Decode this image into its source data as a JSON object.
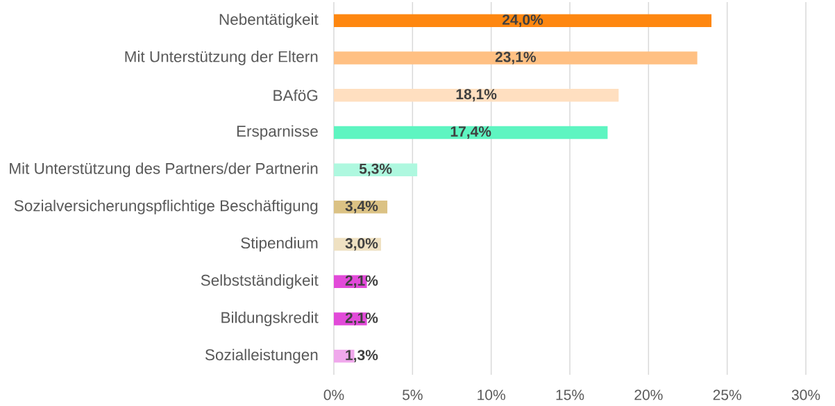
{
  "chart_data": {
    "type": "bar",
    "orientation": "horizontal",
    "categories": [
      "Nebentätigkeit",
      "Mit Unterstützung der Eltern",
      "BAföG",
      "Ersparnisse",
      "Mit Unterstützung des Partners/der Partnerin",
      "Sozialversicherungspflichtige Beschäftigung",
      "Stipendium",
      "Selbstständigkeit",
      "Bildungskredit",
      "Sozialleistungen"
    ],
    "values": [
      24.0,
      23.1,
      18.1,
      17.4,
      5.3,
      3.4,
      3.0,
      2.1,
      2.1,
      1.3
    ],
    "colors": [
      "#fe8710",
      "#ffc083",
      "#ffdfc0",
      "#5ef5c1",
      "#aef8df",
      "#dbc284",
      "#efe1c2",
      "#e24ad9",
      "#e24ad9",
      "#f0a8ec"
    ],
    "value_labels": [
      "24,0%",
      "23,1%",
      "18,1%",
      "17,4%",
      "5,3%",
      "3,4%",
      "3,0%",
      "2,1%",
      "2,1%",
      "1,3%"
    ],
    "xlim": [
      0,
      30
    ],
    "xticks": [
      {
        "value": 0,
        "label": "0%"
      },
      {
        "value": 5,
        "label": "5%"
      },
      {
        "value": 10,
        "label": "10%"
      },
      {
        "value": 15,
        "label": "15%"
      },
      {
        "value": 20,
        "label": "20%"
      },
      {
        "value": 25,
        "label": "25%"
      },
      {
        "value": 30,
        "label": "30%"
      }
    ],
    "grid": "x"
  }
}
